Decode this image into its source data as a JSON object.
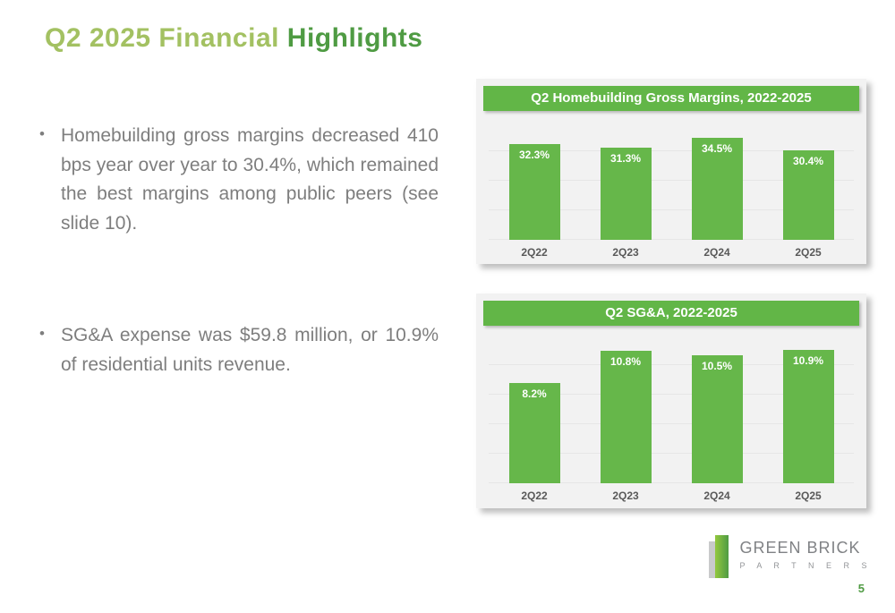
{
  "title": {
    "light": "Q2 2025 Financial ",
    "dark": "Highlights"
  },
  "bullets": [
    "Homebuilding gross margins decreased 410 bps year over year to 30.4%, which remained the best margins among public peers (see slide 10).",
    "SG&A expense was $59.8 million, or 10.9% of residential units revenue."
  ],
  "bullet_marker": "•",
  "chart_data": [
    {
      "type": "bar",
      "title": "Q2 Homebuilding Gross Margins, 2022-2025",
      "categories": [
        "2Q22",
        "2Q23",
        "2Q24",
        "2Q25"
      ],
      "values": [
        32.3,
        31.3,
        34.5,
        30.4
      ],
      "value_labels": [
        "32.3%",
        "31.3%",
        "34.5%",
        "30.4%"
      ],
      "ylim": [
        0,
        40
      ],
      "grid": true,
      "legend": false,
      "bar_color": "#66b74a"
    },
    {
      "type": "bar",
      "title": "Q2 SG&A, 2022-2025",
      "categories": [
        "2Q22",
        "2Q23",
        "2Q24",
        "2Q25"
      ],
      "values": [
        8.2,
        10.8,
        10.5,
        10.9
      ],
      "value_labels": [
        "8.2%",
        "10.8%",
        "10.5%",
        "10.9%"
      ],
      "ylim": [
        0,
        12
      ],
      "grid": true,
      "legend": false,
      "bar_color": "#66b74a"
    }
  ],
  "logo": {
    "brand": "GREEN BRICK",
    "sub": "P A R T N E R S"
  },
  "page_number": "5",
  "colors": {
    "title_light": "#a3c162",
    "title_dark": "#4f9b43",
    "chart_green": "#62b647",
    "text_gray": "#7e7e7e",
    "panel_bg": "#f2f2f2"
  }
}
